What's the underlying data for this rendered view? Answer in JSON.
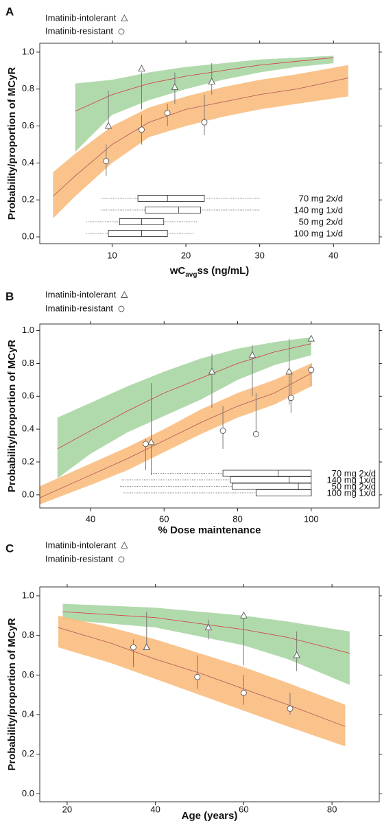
{
  "chart_data": [
    {
      "type": "band-line",
      "panel_label": "A",
      "x_label": [
        "wC",
        "avg",
        "ss (ng/mL)"
      ],
      "y_label": "Probability/proportion of MCyR",
      "xlim": [
        0.2,
        46.2
      ],
      "ylim": [
        -0.037,
        1.048
      ],
      "xticks": [
        10,
        20,
        30,
        40
      ],
      "yticks": [
        {
          "value": 0,
          "label": "0.0"
        },
        {
          "value": 0.2,
          "label": "0.2"
        },
        {
          "value": 0.4,
          "label": "0.4"
        },
        {
          "value": 0.6,
          "label": "0.6"
        },
        {
          "value": 0.8,
          "label": "0.8"
        },
        {
          "value": 1,
          "label": "1.0"
        }
      ],
      "series": [
        {
          "name": "Imatinib-intolerant",
          "marker": "triangle",
          "band_color": "#a9d6a3",
          "color": "#d04848",
          "x": [
            5,
            10,
            15,
            20,
            25,
            30,
            35,
            40
          ],
          "lower": [
            0.46,
            0.66,
            0.74,
            0.8,
            0.85,
            0.89,
            0.92,
            0.94
          ],
          "upper": [
            0.83,
            0.85,
            0.89,
            0.92,
            0.94,
            0.96,
            0.97,
            0.98
          ],
          "mean": [
            0.68,
            0.77,
            0.83,
            0.87,
            0.9,
            0.93,
            0.95,
            0.97
          ],
          "points": {
            "x": [
              9.5,
              14,
              18.5,
              23.5
            ],
            "y": [
              0.6,
              0.91,
              0.81,
              0.84
            ],
            "lo": [
              0.58,
              0.69,
              0.72,
              0.77
            ],
            "hi": [
              0.79,
              0.89,
              0.89,
              0.94
            ]
          }
        },
        {
          "name": "Imatinib-resistant",
          "marker": "circle",
          "band_color": "#f9bd7e",
          "color": "#b86060",
          "x": [
            2,
            5,
            10,
            15,
            20,
            25,
            30,
            35,
            42
          ],
          "lower": [
            0.1,
            0.22,
            0.4,
            0.54,
            0.6,
            0.65,
            0.69,
            0.72,
            0.76
          ],
          "upper": [
            0.35,
            0.45,
            0.6,
            0.7,
            0.76,
            0.81,
            0.85,
            0.88,
            0.93
          ],
          "mean": [
            0.22,
            0.33,
            0.5,
            0.62,
            0.69,
            0.73,
            0.77,
            0.8,
            0.86
          ],
          "points": {
            "x": [
              9.2,
              14,
              17.5,
              22.5
            ],
            "y": [
              0.41,
              0.58,
              0.67,
              0.62
            ],
            "lo": [
              0.33,
              0.5,
              0.6,
              0.55
            ],
            "hi": [
              0.5,
              0.66,
              0.72,
              0.77
            ]
          }
        }
      ],
      "boxplots": [
        {
          "name": "70 mg 2x/d",
          "whisker_low": 8.5,
          "q1": 13.5,
          "median": 17.5,
          "q3": 22.5,
          "whisker_high": 30
        },
        {
          "name": "140 mg 1x/d",
          "whisker_low": 8.5,
          "q1": 14.5,
          "median": 19,
          "q3": 22,
          "whisker_high": 30
        },
        {
          "name": "50 mg 2x/d",
          "whisker_low": 6.5,
          "q1": 11,
          "median": 14,
          "q3": 17,
          "whisker_high": 21.5
        },
        {
          "name": "100 mg 1x/d",
          "whisker_low": 6.5,
          "q1": 9.5,
          "median": 14,
          "q3": 17.5,
          "whisker_high": 21
        }
      ]
    },
    {
      "type": "band-line",
      "panel_label": "B",
      "x_label": [
        "% Dose maintenance"
      ],
      "y_label": "Probability/proportion of MCyR",
      "xlim": [
        26.2,
        118.5
      ],
      "ylim": [
        -0.08,
        1.04
      ],
      "xticks": [
        40,
        60,
        80,
        100
      ],
      "yticks": [
        {
          "value": 0,
          "label": "0.0"
        },
        {
          "value": 0.2,
          "label": "0.2"
        },
        {
          "value": 0.4,
          "label": "0.4"
        },
        {
          "value": 0.6,
          "label": "0.6"
        },
        {
          "value": 0.8,
          "label": "0.8"
        },
        {
          "value": 1,
          "label": "1.0"
        }
      ],
      "series": [
        {
          "name": "Imatinib-intolerant",
          "marker": "triangle",
          "band_color": "#a9d6a3",
          "color": "#d04848",
          "x": [
            31,
            40,
            50,
            60,
            70,
            80,
            90,
            100
          ],
          "lower": [
            0.1,
            0.25,
            0.38,
            0.48,
            0.58,
            0.7,
            0.79,
            0.85
          ],
          "upper": [
            0.47,
            0.56,
            0.66,
            0.75,
            0.83,
            0.89,
            0.93,
            0.96
          ],
          "mean": [
            0.28,
            0.39,
            0.51,
            0.62,
            0.71,
            0.8,
            0.87,
            0.92
          ],
          "points": {
            "x": [
              56.5,
              73,
              84,
              94,
              100
            ],
            "y": [
              0.32,
              0.75,
              0.85,
              0.75,
              0.95
            ],
            "lo": [
              0.12,
              0.53,
              0.6,
              0.55,
              0.93
            ],
            "hi": [
              0.68,
              0.86,
              0.91,
              0.95,
              0.96
            ]
          }
        },
        {
          "name": "Imatinib-resistant",
          "marker": "circle",
          "band_color": "#f9bd7e",
          "color": "#b86060",
          "x": [
            26,
            40,
            50,
            60,
            70,
            80,
            90,
            100
          ],
          "lower": [
            -0.06,
            0.06,
            0.15,
            0.26,
            0.37,
            0.47,
            0.55,
            0.66
          ],
          "upper": [
            0.05,
            0.19,
            0.29,
            0.4,
            0.52,
            0.62,
            0.7,
            0.8
          ],
          "mean": [
            -0.02,
            0.12,
            0.22,
            0.33,
            0.44,
            0.54,
            0.62,
            0.74
          ],
          "points": {
            "x": [
              55,
              76,
              85,
              94.5,
              100
            ],
            "y": [
              0.31,
              0.39,
              0.37,
              0.59,
              0.76
            ],
            "lo": [
              0.15,
              0.28,
              0.37,
              0.5,
              0.66
            ],
            "hi": [
              0.34,
              0.54,
              0.62,
              0.74,
              0.8
            ]
          }
        }
      ],
      "boxplots": [
        {
          "name": "70 mg 2x/d",
          "whisker_low": 56.5,
          "q1": 76,
          "median": 91,
          "q3": 100,
          "whisker_high": 100
        },
        {
          "name": "140 mg 1x/d",
          "whisker_low": 48.5,
          "q1": 78,
          "median": 94,
          "q3": 100,
          "whisker_high": 100
        },
        {
          "name": "50 mg 2x/d",
          "whisker_low": 48,
          "q1": 78.5,
          "median": 96.5,
          "q3": 100,
          "whisker_high": 100
        },
        {
          "name": "100 mg 1x/d",
          "whisker_low": 49,
          "q1": 85,
          "median": 100,
          "q3": 100,
          "whisker_high": 100
        }
      ]
    },
    {
      "type": "band-line",
      "panel_label": "C",
      "x_label": [
        "Age (years)"
      ],
      "y_label": "Probability/proportion of MCyR",
      "xlim": [
        13.8,
        90.7
      ],
      "ylim": [
        -0.04,
        1.045
      ],
      "xticks": [
        20,
        40,
        60,
        80
      ],
      "yticks": [
        {
          "value": 0,
          "label": "0.0"
        },
        {
          "value": 0.2,
          "label": "0.2"
        },
        {
          "value": 0.4,
          "label": "0.4"
        },
        {
          "value": 0.6,
          "label": "0.6"
        },
        {
          "value": 0.8,
          "label": "0.8"
        },
        {
          "value": 1,
          "label": "1.0"
        }
      ],
      "series": [
        {
          "name": "Imatinib-intolerant",
          "marker": "triangle",
          "band_color": "#a9d6a3",
          "color": "#d04848",
          "x": [
            19,
            40,
            60,
            70,
            84
          ],
          "lower": [
            0.88,
            0.84,
            0.75,
            0.68,
            0.55
          ],
          "upper": [
            0.96,
            0.94,
            0.9,
            0.87,
            0.82
          ],
          "mean": [
            0.92,
            0.89,
            0.83,
            0.79,
            0.71
          ],
          "points": {
            "x": [
              38,
              52,
              60,
              72
            ],
            "y": [
              0.74,
              0.84,
              0.9,
              0.7
            ],
            "lo": [
              0.74,
              0.78,
              0.65,
              0.62
            ],
            "hi": [
              0.92,
              0.88,
              0.9,
              0.82
            ]
          }
        },
        {
          "name": "Imatinib-resistant",
          "marker": "circle",
          "band_color": "#f9bd7e",
          "color": "#b86060",
          "x": [
            18,
            30,
            40,
            50,
            60,
            70,
            83
          ],
          "lower": [
            0.74,
            0.66,
            0.58,
            0.5,
            0.42,
            0.34,
            0.24
          ],
          "upper": [
            0.9,
            0.84,
            0.78,
            0.71,
            0.64,
            0.56,
            0.45
          ],
          "mean": [
            0.84,
            0.76,
            0.68,
            0.61,
            0.53,
            0.45,
            0.34
          ],
          "points": {
            "x": [
              35,
              49.5,
              60,
              70.5
            ],
            "y": [
              0.74,
              0.59,
              0.51,
              0.43
            ],
            "lo": [
              0.64,
              0.53,
              0.45,
              0.4
            ],
            "hi": [
              0.78,
              0.7,
              0.6,
              0.51
            ]
          }
        }
      ]
    }
  ]
}
